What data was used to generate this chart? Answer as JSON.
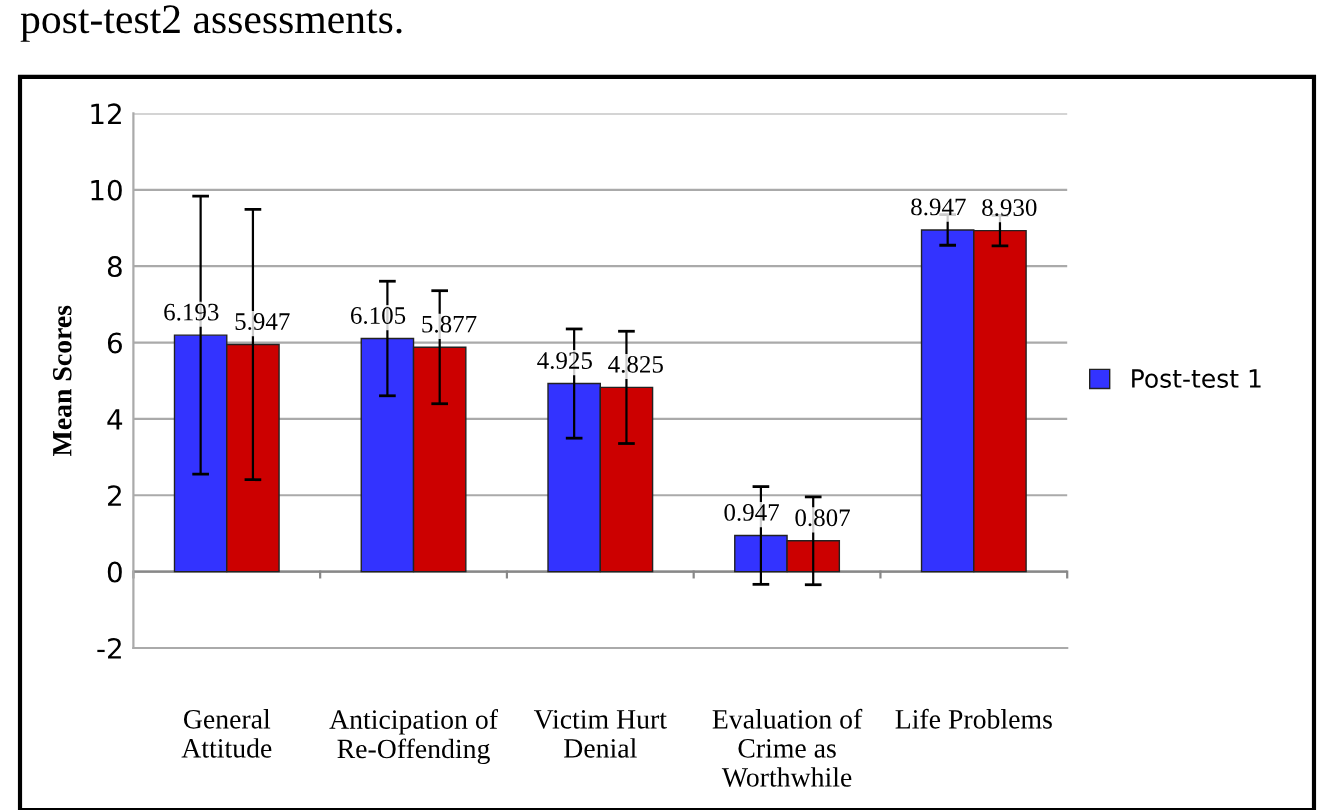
{
  "chart_data": {
    "type": "bar",
    "ylabel": "Mean Scores",
    "annotations": [
      "post-test2 assessments."
    ],
    "categories": [
      "General\nAttitude",
      "Anticipation of\nRe-Offending",
      "Victim Hurt\nDenial",
      "Evaluation of\nCrime as\nWorthwhile",
      "Life Problems"
    ],
    "series": [
      {
        "name": "Post-test 1",
        "color": "#3333ff",
        "values": [
          6.193,
          6.105,
          4.925,
          0.947,
          8.947
        ],
        "errors": [
          3.64,
          1.5,
          1.43,
          1.28,
          0.4
        ]
      },
      {
        "color": "#cc0000",
        "values": [
          5.947,
          5.877,
          4.825,
          0.807,
          8.93
        ],
        "value_labels": [
          "5.947",
          "5.877",
          "4.825",
          "0.807",
          "8.930"
        ],
        "errors": [
          3.54,
          1.48,
          1.47,
          1.15,
          0.4
        ]
      }
    ],
    "data_labels": true,
    "ylim": [
      -2,
      12
    ],
    "yticks": [
      -2,
      0,
      2,
      4,
      6,
      8,
      10,
      12
    ],
    "grid": "y",
    "legend": "right"
  }
}
